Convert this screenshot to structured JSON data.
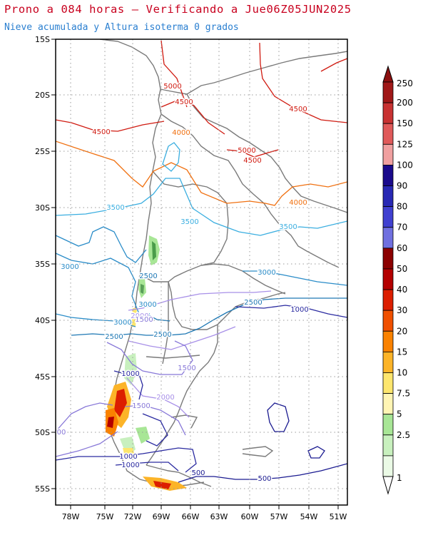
{
  "header": {
    "title": "Prono a 084 horas — Verificando a Jue06Z05JUN2025",
    "subtitle": "Nieve acumulada y Altura isoterma 0 grados"
  },
  "map": {
    "lat_labels": [
      "15S",
      "20S",
      "25S",
      "30S",
      "35S",
      "40S",
      "45S",
      "50S",
      "55S"
    ],
    "lon_labels": [
      "78W",
      "75W",
      "72W",
      "69W",
      "66W",
      "63W",
      "60W",
      "57W",
      "54W",
      "51W"
    ],
    "contour_labels": [
      {
        "text": "5000",
        "color": "#d01a10"
      },
      {
        "text": "4500",
        "color": "#d01a10"
      },
      {
        "text": "4500",
        "color": "#d01a10"
      },
      {
        "text": "4500",
        "color": "#d01a10"
      },
      {
        "text": "4500",
        "color": "#d01a10"
      },
      {
        "text": "5000",
        "color": "#d01a10"
      },
      {
        "text": "4000",
        "color": "#f07010"
      },
      {
        "text": "4000",
        "color": "#f07010"
      },
      {
        "text": "3500",
        "color": "#3aaee0"
      },
      {
        "text": "3500",
        "color": "#3aaee0"
      },
      {
        "text": "3500",
        "color": "#3aaee0"
      },
      {
        "text": "3000",
        "color": "#2a8cc8"
      },
      {
        "text": "3000",
        "color": "#2a8cc8"
      },
      {
        "text": "3000",
        "color": "#2a8cc8"
      },
      {
        "text": "3000",
        "color": "#2a8cc8"
      },
      {
        "text": "2500",
        "color": "#1e78b4"
      },
      {
        "text": "2500",
        "color": "#1e78b4"
      },
      {
        "text": "2500",
        "color": "#1e78b4"
      },
      {
        "text": "2500",
        "color": "#1e78b4"
      },
      {
        "text": "2000",
        "color": "#a890e8"
      },
      {
        "text": "2000",
        "color": "#a890e8"
      },
      {
        "text": "1500",
        "color": "#8878d8"
      },
      {
        "text": "1500",
        "color": "#8878d8"
      },
      {
        "text": "1500",
        "color": "#8878d8"
      },
      {
        "text": "1000",
        "color": "#2a2aa0"
      },
      {
        "text": "1000",
        "color": "#2a2aa0"
      },
      {
        "text": "1000",
        "color": "#2a2aa0"
      },
      {
        "text": "1000",
        "color": "#2a2aa0"
      },
      {
        "text": "500",
        "color": "#1a1a90"
      },
      {
        "text": "500",
        "color": "#1a1a90"
      },
      {
        "text": "00",
        "color": "#8878d8"
      }
    ]
  },
  "colorbar": {
    "labels": [
      "250",
      "200",
      "150",
      "125",
      "100",
      "90",
      "80",
      "70",
      "60",
      "50",
      "40",
      "30",
      "20",
      "15",
      "10",
      "7.5",
      "5",
      "2.5",
      "1"
    ],
    "colors": [
      "#a01818",
      "#c83232",
      "#e05a5a",
      "#f0a0a0",
      "#1a0a8c",
      "#2828b4",
      "#4040d0",
      "#7070e0",
      "#8c0000",
      "#b40000",
      "#dc1e00",
      "#f05000",
      "#fa8200",
      "#fcb428",
      "#fde66e",
      "#fff5b4",
      "#a8e696",
      "#c8f0be",
      "#ebfae6"
    ],
    "top_color": "#8c1010",
    "bottom_color": "#ffffff"
  }
}
